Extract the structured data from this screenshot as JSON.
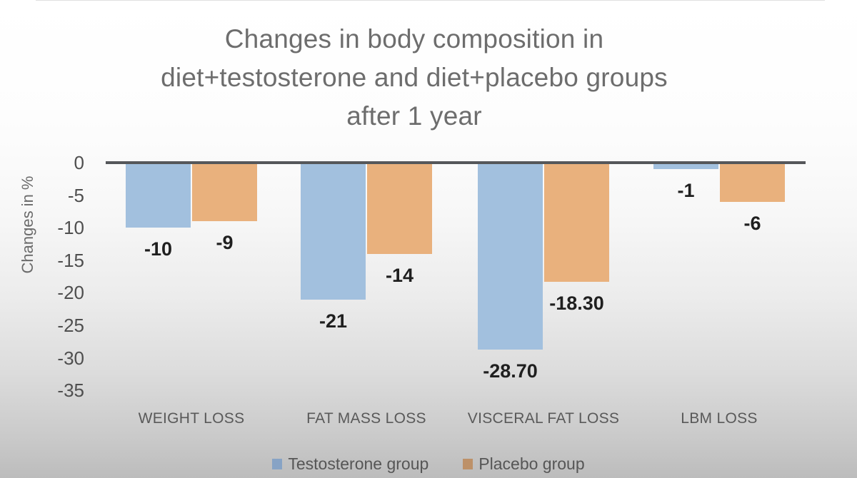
{
  "title": {
    "lines": [
      "Changes in body composition in",
      "diet+testosterone and diet+placebo groups",
      "after 1 year"
    ],
    "color": "#6d6d6d"
  },
  "chart_data": {
    "type": "bar",
    "title": "Changes in body composition in diet+testosterone and diet+placebo groups after 1 year",
    "xlabel": "",
    "ylabel": "Changes in %",
    "categories": [
      "WEIGHT LOSS",
      "FAT MASS LOSS",
      "VISCERAL FAT LOSS",
      "LBM LOSS"
    ],
    "series": [
      {
        "name": "Testosterone group",
        "color": "#a2c0de",
        "legend_color": "#87a3c5",
        "values": [
          -10,
          -21,
          -28.7,
          -1
        ],
        "labels": [
          "-10",
          "-21",
          "-28.70",
          "-1"
        ]
      },
      {
        "name": "Placebo group",
        "color": "#e9b17d",
        "legend_color": "#bd9169",
        "values": [
          -9,
          -14,
          -18.3,
          -6
        ],
        "labels": [
          "-9",
          "-14",
          "-18.30",
          "-6"
        ]
      }
    ],
    "yticks": [
      0,
      -5,
      -10,
      -15,
      -20,
      -25,
      -30,
      -35
    ],
    "ylim": [
      -35,
      0
    ],
    "grid": false,
    "legend_position": "bottom",
    "axis_line_color": "#55575a",
    "value_label_color": "#1f1f1f"
  }
}
